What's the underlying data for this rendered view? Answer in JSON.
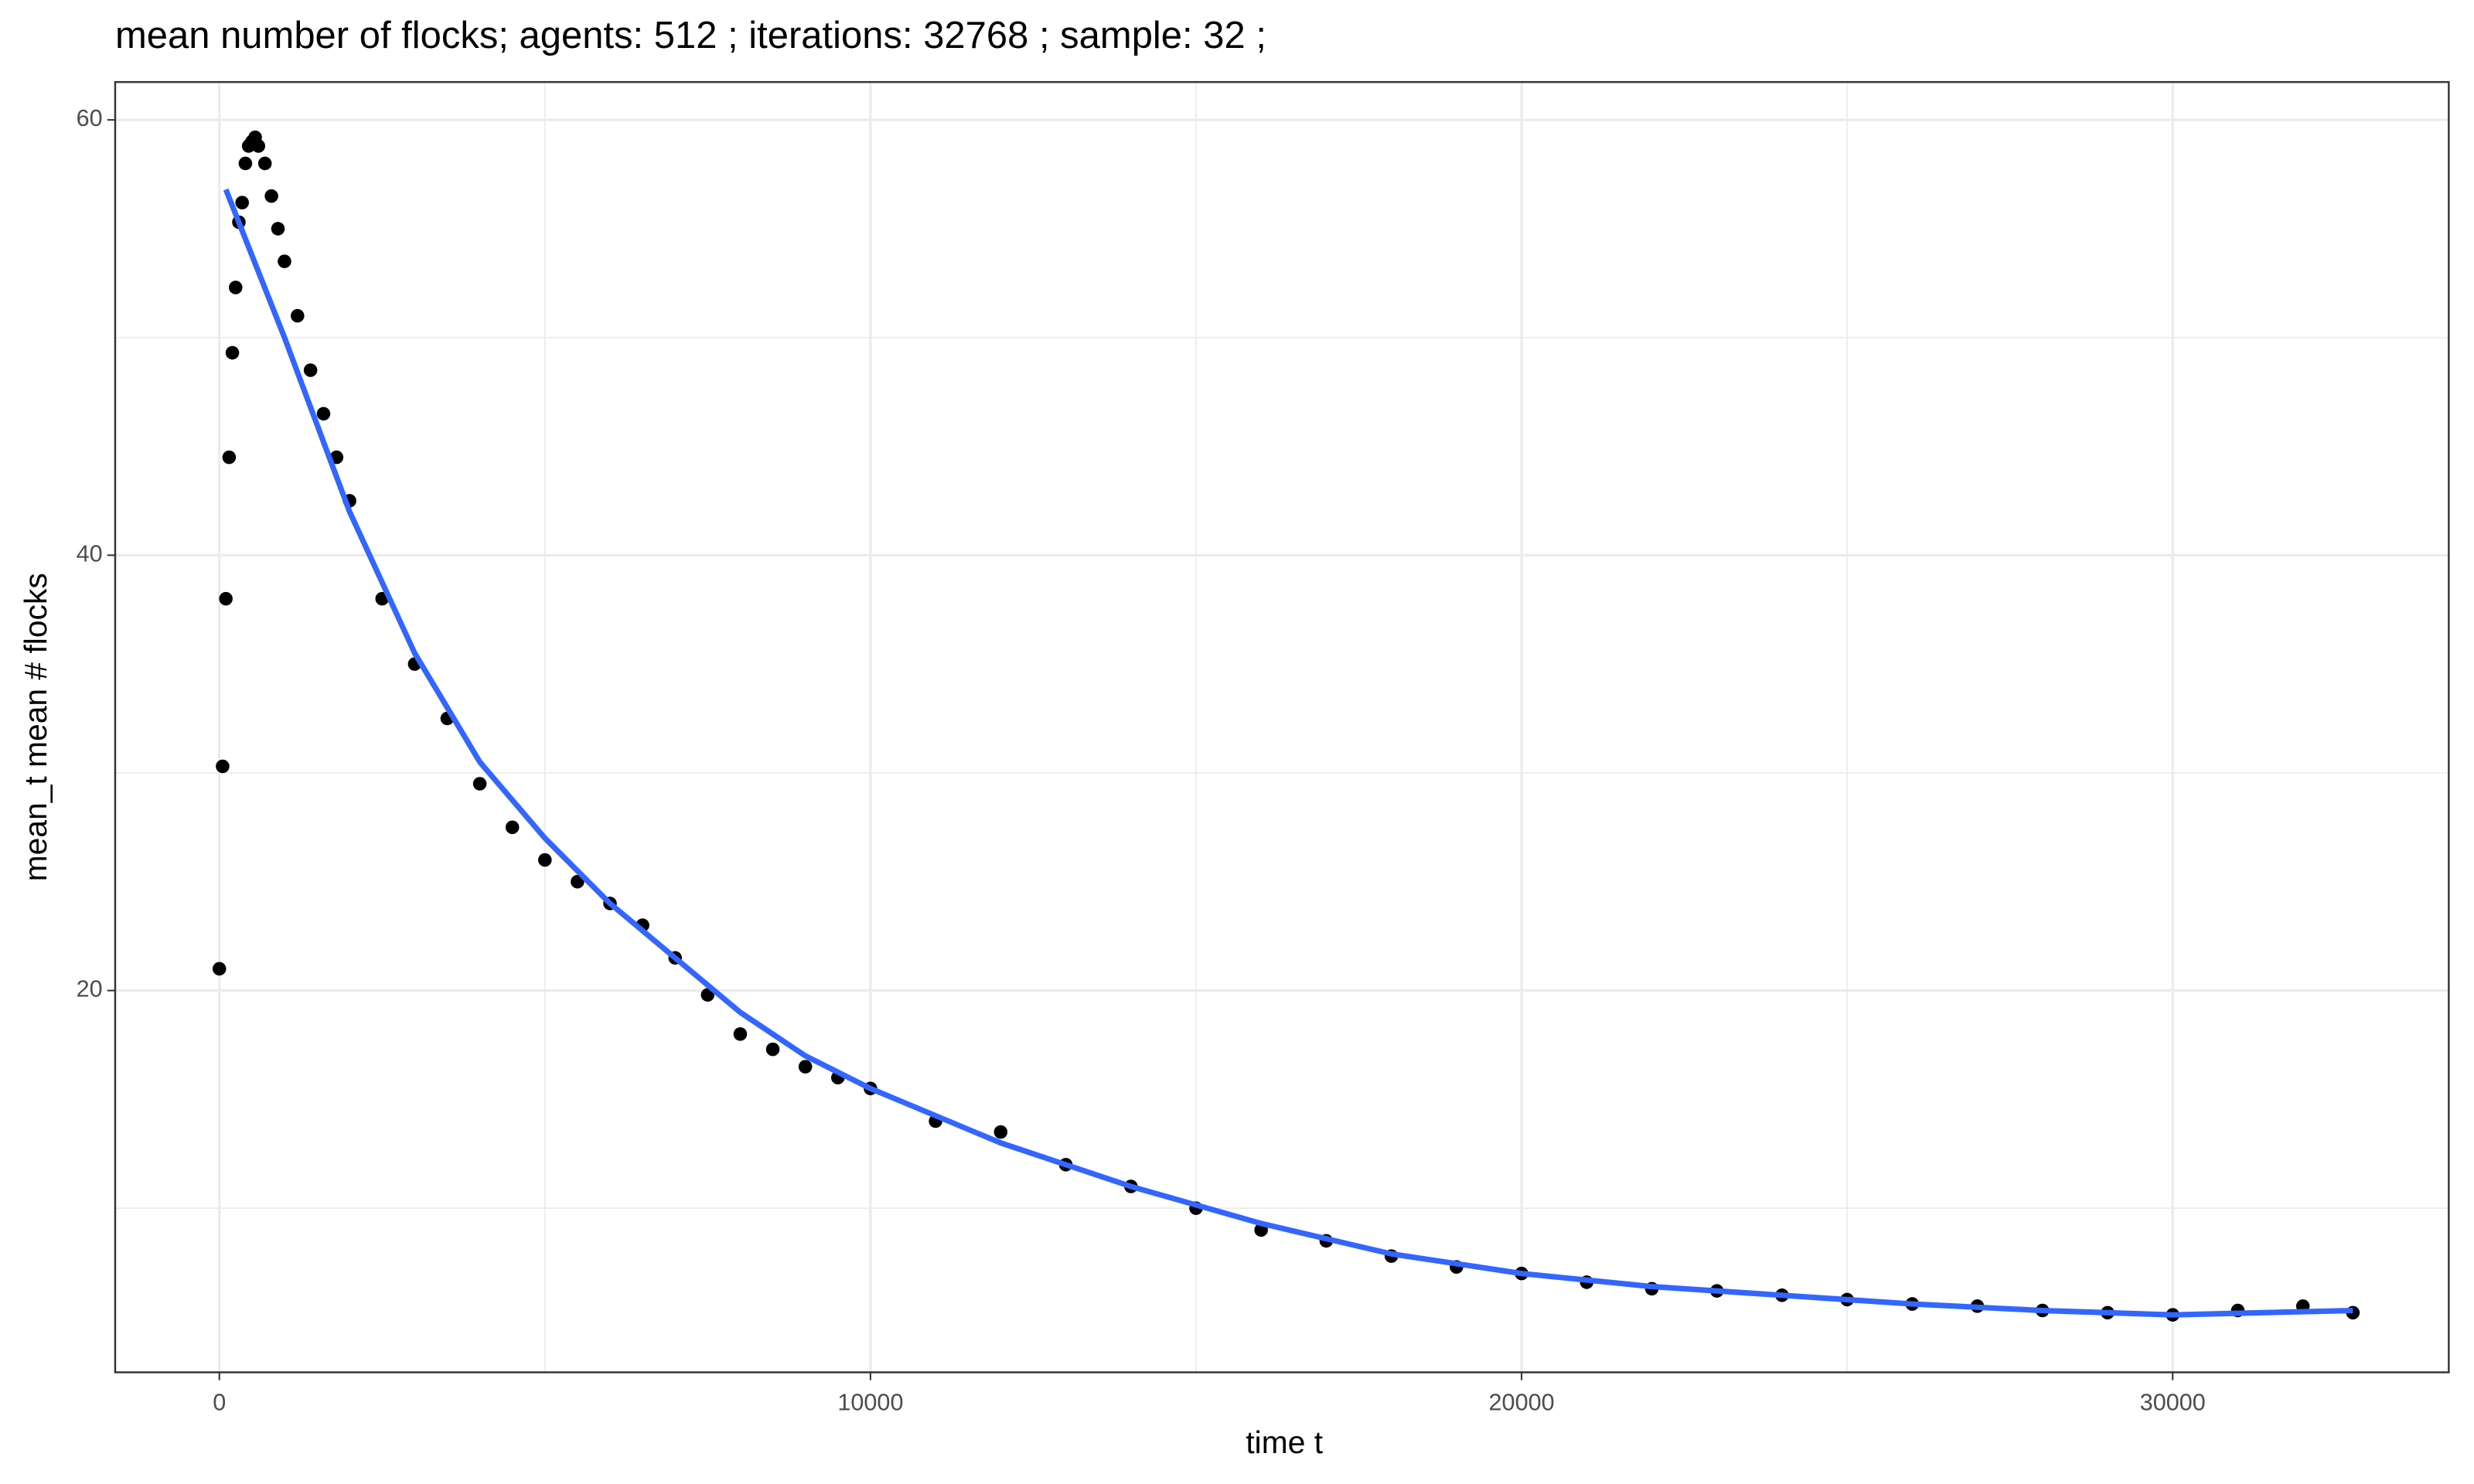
{
  "chart_data": {
    "type": "scatter",
    "title": "mean number of flocks; agents: 512 ; iterations: 32768 ; sample: 32 ;",
    "x_label": "time t",
    "y_label": "mean_t mean # flocks",
    "xlim": [
      -1600,
      34240
    ],
    "ylim": [
      2.46,
      61.74
    ],
    "xticks": [
      0,
      10000,
      20000,
      30000
    ],
    "yticks": [
      20,
      40,
      60
    ],
    "x_minor_grid": [
      5000,
      15000,
      25000
    ],
    "y_minor_grid": [
      10,
      30,
      50
    ],
    "grid": true,
    "series": [
      {
        "type": "scatter",
        "color": "#000000",
        "x": [
          0,
          50,
          100,
          150,
          200,
          250,
          300,
          350,
          400,
          450,
          500,
          550,
          600,
          700,
          800,
          900,
          1000,
          1200,
          1400,
          1600,
          1800,
          2000,
          2500,
          3000,
          3500,
          4000,
          4500,
          5000,
          5500,
          6000,
          6500,
          7000,
          7500,
          8000,
          8500,
          9000,
          9500,
          10000,
          11000,
          12000,
          13000,
          14000,
          15000,
          16000,
          17000,
          18000,
          19000,
          20000,
          21000,
          22000,
          23000,
          24000,
          25000,
          26000,
          27000,
          28000,
          29000,
          30000,
          31000,
          32000,
          32768
        ],
        "values": [
          21,
          30.3,
          38,
          44.5,
          49.3,
          52.3,
          55.3,
          56.2,
          58,
          58.8,
          59,
          59.2,
          58.8,
          58,
          56.5,
          55,
          53.5,
          51,
          48.5,
          46.5,
          44.5,
          42.5,
          38,
          35,
          32.5,
          29.5,
          27.5,
          26,
          25,
          24,
          23,
          21.5,
          19.8,
          18,
          17.3,
          16.5,
          16,
          15.5,
          14,
          13.5,
          12,
          11,
          10,
          9,
          8.5,
          7.8,
          7.3,
          7,
          6.6,
          6.3,
          6.2,
          6,
          5.8,
          5.6,
          5.5,
          5.3,
          5.2,
          5.1,
          5.3,
          5.5,
          5.2
        ]
      },
      {
        "type": "line",
        "color": "#3366ff",
        "x": [
          100,
          1000,
          2000,
          3000,
          4000,
          5000,
          6000,
          7000,
          8000,
          9000,
          10000,
          12000,
          14000,
          16000,
          18000,
          20000,
          22000,
          24000,
          26000,
          28000,
          30000,
          32768
        ],
        "values": [
          56.8,
          50,
          42,
          35.5,
          30.5,
          27,
          24,
          21.5,
          19,
          17,
          15.5,
          13,
          11,
          9.3,
          7.9,
          7,
          6.4,
          6,
          5.6,
          5.3,
          5.1,
          5.3
        ]
      }
    ]
  }
}
